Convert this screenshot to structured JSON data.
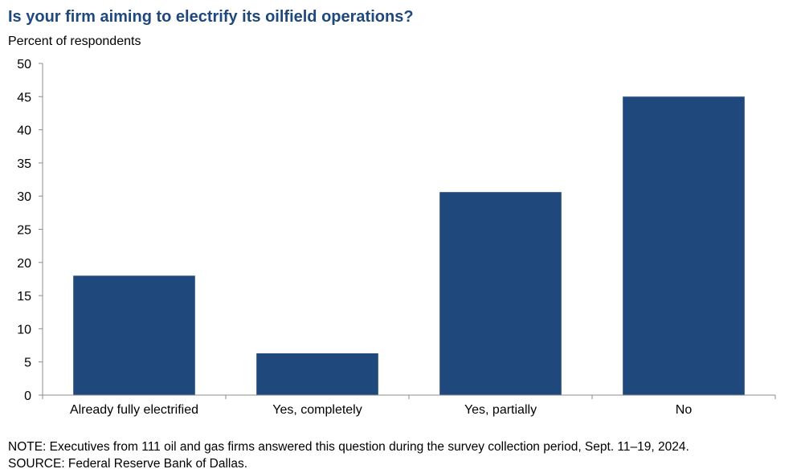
{
  "chart_data": {
    "type": "bar",
    "title": "Is your firm aiming to electrify its oilfield operations?",
    "ylabel": "Percent of respondents",
    "xlabel": "",
    "categories": [
      "Already fully electrified",
      "Yes, completely",
      "Yes, partially",
      "No"
    ],
    "values": [
      18.0,
      6.3,
      30.6,
      45.0
    ],
    "ylim": [
      0,
      50
    ],
    "yticks": [
      0,
      5,
      10,
      15,
      20,
      25,
      30,
      35,
      40,
      45,
      50
    ],
    "grid": false,
    "bar_color": "#1f497d"
  },
  "footer": {
    "note": "NOTE:  Executives  from  111  oil  and  gas  firms  answered  this  question  during  the  survey  collection  period,  Sept.  11–19,  2024.",
    "source": "SOURCE:  Federal  Reserve  Bank  of  Dallas."
  }
}
